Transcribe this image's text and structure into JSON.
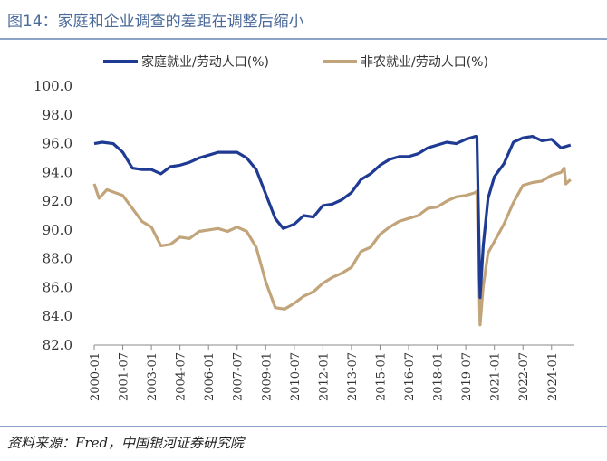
{
  "title": "图14：家庭和企业调查的差距在调整后缩小",
  "source": "资料来源：Fred，中国银河证券研究院",
  "colors": {
    "household": "#1f3a93",
    "nonfarm": "#c2a47a"
  },
  "chart_data": {
    "type": "line",
    "title": "图14：家庭和企业调查的差距在调整后缩小",
    "ylim": [
      82.0,
      100.0
    ],
    "yticks": [
      "100.0",
      "98.0",
      "96.0",
      "94.0",
      "92.0",
      "90.0",
      "88.0",
      "86.0",
      "84.0",
      "82.0"
    ],
    "xticks": [
      "2000-01",
      "2001-07",
      "2003-01",
      "2004-07",
      "2006-01",
      "2007-07",
      "2009-01",
      "2010-07",
      "2012-01",
      "2013-07",
      "2015-01",
      "2016-07",
      "2018-01",
      "2019-07",
      "2021-01",
      "2022-07",
      "2024-01"
    ],
    "legend_position": "top",
    "series": [
      {
        "name": "家庭就业/劳动人口(%)",
        "points": [
          [
            "2000-01",
            96.0
          ],
          [
            "2000-06",
            96.1
          ],
          [
            "2001-01",
            96.0
          ],
          [
            "2001-07",
            95.4
          ],
          [
            "2002-01",
            94.3
          ],
          [
            "2002-07",
            94.2
          ],
          [
            "2003-01",
            94.2
          ],
          [
            "2003-07",
            93.9
          ],
          [
            "2004-01",
            94.4
          ],
          [
            "2004-07",
            94.5
          ],
          [
            "2005-01",
            94.7
          ],
          [
            "2005-07",
            95.0
          ],
          [
            "2006-01",
            95.2
          ],
          [
            "2006-07",
            95.4
          ],
          [
            "2007-01",
            95.4
          ],
          [
            "2007-07",
            95.4
          ],
          [
            "2008-01",
            95.0
          ],
          [
            "2008-07",
            94.2
          ],
          [
            "2009-01",
            92.5
          ],
          [
            "2009-07",
            90.8
          ],
          [
            "2009-12",
            90.1
          ],
          [
            "2010-07",
            90.4
          ],
          [
            "2011-01",
            91.0
          ],
          [
            "2011-07",
            90.9
          ],
          [
            "2012-01",
            91.7
          ],
          [
            "2012-07",
            91.8
          ],
          [
            "2013-01",
            92.1
          ],
          [
            "2013-07",
            92.6
          ],
          [
            "2014-01",
            93.5
          ],
          [
            "2014-07",
            93.9
          ],
          [
            "2015-01",
            94.5
          ],
          [
            "2015-07",
            94.9
          ],
          [
            "2016-01",
            95.1
          ],
          [
            "2016-07",
            95.1
          ],
          [
            "2017-01",
            95.3
          ],
          [
            "2017-07",
            95.7
          ],
          [
            "2018-01",
            95.9
          ],
          [
            "2018-07",
            96.1
          ],
          [
            "2019-01",
            96.0
          ],
          [
            "2019-07",
            96.3
          ],
          [
            "2020-01",
            96.5
          ],
          [
            "2020-02",
            96.5
          ],
          [
            "2020-04",
            85.3
          ],
          [
            "2020-06",
            88.9
          ],
          [
            "2020-09",
            92.2
          ],
          [
            "2021-01",
            93.7
          ],
          [
            "2021-07",
            94.6
          ],
          [
            "2022-01",
            96.1
          ],
          [
            "2022-07",
            96.4
          ],
          [
            "2023-01",
            96.5
          ],
          [
            "2023-07",
            96.2
          ],
          [
            "2024-01",
            96.3
          ],
          [
            "2024-07",
            95.7
          ],
          [
            "2025-01",
            95.9
          ]
        ]
      },
      {
        "name": "非农就业/劳动人口(%)",
        "points": [
          [
            "2000-01",
            93.2
          ],
          [
            "2000-04",
            92.2
          ],
          [
            "2000-09",
            92.8
          ],
          [
            "2001-07",
            92.4
          ],
          [
            "2002-01",
            91.5
          ],
          [
            "2002-07",
            90.6
          ],
          [
            "2003-01",
            90.2
          ],
          [
            "2003-07",
            88.9
          ],
          [
            "2004-01",
            89.0
          ],
          [
            "2004-07",
            89.5
          ],
          [
            "2005-01",
            89.4
          ],
          [
            "2005-07",
            89.9
          ],
          [
            "2006-01",
            90.0
          ],
          [
            "2006-07",
            90.1
          ],
          [
            "2007-01",
            89.9
          ],
          [
            "2007-07",
            90.2
          ],
          [
            "2008-01",
            89.9
          ],
          [
            "2008-07",
            88.8
          ],
          [
            "2009-01",
            86.4
          ],
          [
            "2009-07",
            84.6
          ],
          [
            "2010-01",
            84.5
          ],
          [
            "2010-07",
            84.9
          ],
          [
            "2011-01",
            85.4
          ],
          [
            "2011-07",
            85.7
          ],
          [
            "2012-01",
            86.3
          ],
          [
            "2012-07",
            86.7
          ],
          [
            "2013-01",
            87.0
          ],
          [
            "2013-07",
            87.4
          ],
          [
            "2014-01",
            88.5
          ],
          [
            "2014-07",
            88.8
          ],
          [
            "2015-01",
            89.7
          ],
          [
            "2015-07",
            90.2
          ],
          [
            "2016-01",
            90.6
          ],
          [
            "2016-07",
            90.8
          ],
          [
            "2017-01",
            91.0
          ],
          [
            "2017-07",
            91.5
          ],
          [
            "2018-01",
            91.6
          ],
          [
            "2018-07",
            92.0
          ],
          [
            "2019-01",
            92.3
          ],
          [
            "2019-07",
            92.4
          ],
          [
            "2020-01",
            92.6
          ],
          [
            "2020-02",
            92.7
          ],
          [
            "2020-04",
            83.4
          ],
          [
            "2020-06",
            86.1
          ],
          [
            "2020-09",
            88.4
          ],
          [
            "2021-01",
            89.2
          ],
          [
            "2021-07",
            90.4
          ],
          [
            "2022-01",
            91.9
          ],
          [
            "2022-07",
            93.1
          ],
          [
            "2023-01",
            93.3
          ],
          [
            "2023-07",
            93.4
          ],
          [
            "2024-01",
            93.8
          ],
          [
            "2024-07",
            94.0
          ],
          [
            "2024-09",
            94.3
          ],
          [
            "2024-10",
            93.2
          ],
          [
            "2025-01",
            93.5
          ]
        ]
      }
    ]
  }
}
